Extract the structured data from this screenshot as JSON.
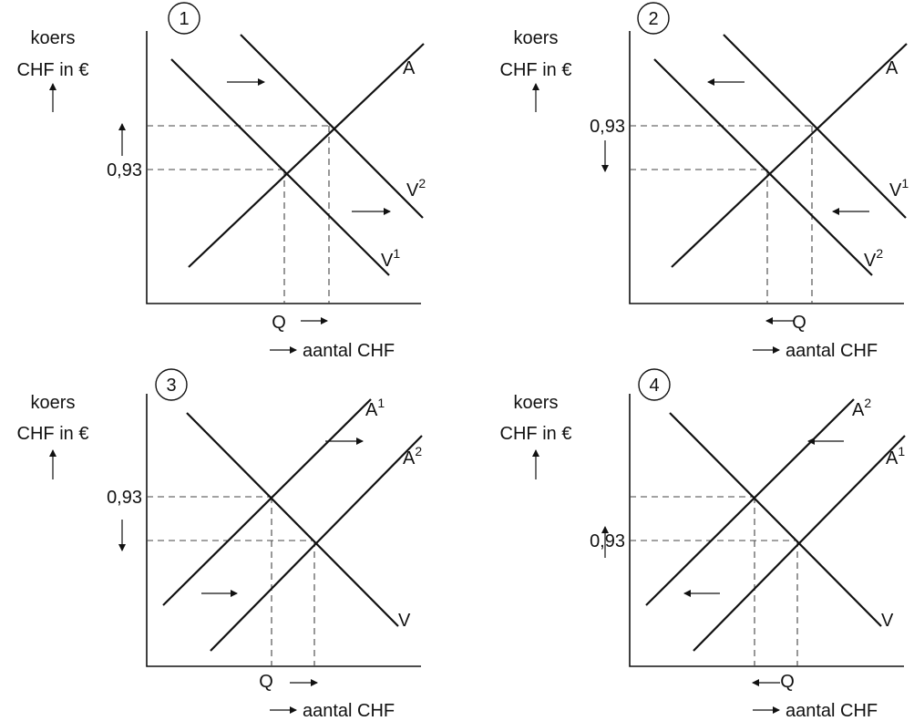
{
  "y_axis_line1": "koers",
  "y_axis_line2": "CHF in €",
  "x_axis_label": "aantal CHF",
  "price_label": "0,93",
  "quantity_label": "Q",
  "panels": [
    {
      "number": "1",
      "curves": [
        {
          "name": "A",
          "sup": "",
          "kind": "supply"
        },
        {
          "name": "V",
          "sup": "1",
          "kind": "demand"
        },
        {
          "name": "V",
          "sup": "2",
          "kind": "demand"
        }
      ],
      "shift": "right",
      "price_move": "up",
      "quantity_move": "right"
    },
    {
      "number": "2",
      "curves": [
        {
          "name": "A",
          "sup": "",
          "kind": "supply"
        },
        {
          "name": "V",
          "sup": "1",
          "kind": "demand"
        },
        {
          "name": "V",
          "sup": "2",
          "kind": "demand"
        }
      ],
      "shift": "left",
      "price_move": "down",
      "quantity_move": "left"
    },
    {
      "number": "3",
      "curves": [
        {
          "name": "A",
          "sup": "1",
          "kind": "supply"
        },
        {
          "name": "A",
          "sup": "2",
          "kind": "supply"
        },
        {
          "name": "V",
          "sup": "",
          "kind": "demand"
        }
      ],
      "shift": "right",
      "price_move": "down",
      "quantity_move": "right"
    },
    {
      "number": "4",
      "curves": [
        {
          "name": "A",
          "sup": "2",
          "kind": "supply"
        },
        {
          "name": "A",
          "sup": "1",
          "kind": "supply"
        },
        {
          "name": "V",
          "sup": "",
          "kind": "demand"
        }
      ],
      "shift": "left",
      "price_move": "up",
      "quantity_move": "left"
    }
  ]
}
